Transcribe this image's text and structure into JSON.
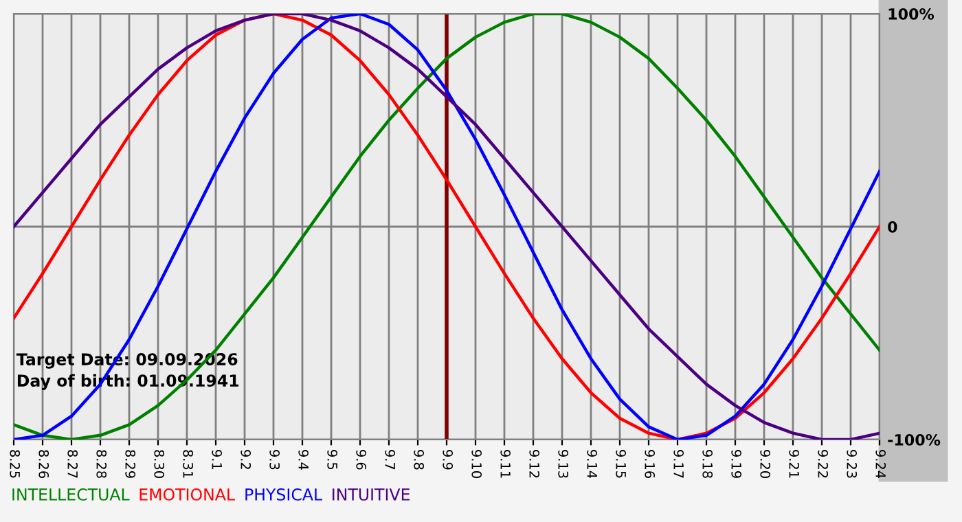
{
  "chart_data": {
    "type": "line",
    "categories": [
      "8.25",
      "8.26",
      "8.27",
      "8.28",
      "8.29",
      "8.30",
      "8.31",
      "9.1",
      "9.2",
      "9.3",
      "9.4",
      "9.5",
      "9.6",
      "9.7",
      "9.8",
      "9.9",
      "9.10",
      "9.11",
      "9.12",
      "9.13",
      "9.14",
      "9.15",
      "9.16",
      "9.17",
      "9.18",
      "9.19",
      "9.20",
      "9.21",
      "9.22",
      "9.23",
      "9.24"
    ],
    "series": [
      {
        "name": "INTELLECTUAL",
        "color": "#008000",
        "values": [
          -93,
          -98,
          -100,
          -98,
          -93,
          -84,
          -72,
          -58,
          -41,
          -24,
          -5,
          14,
          33,
          50,
          65,
          79,
          89,
          96,
          100,
          100,
          96,
          89,
          79,
          65,
          50,
          33,
          14,
          -5,
          -24,
          -41,
          -58
        ]
      },
      {
        "name": "EMOTIONAL",
        "color": "#ff0000",
        "values": [
          -43,
          -22,
          0,
          22,
          43,
          62,
          78,
          90,
          97,
          100,
          97,
          90,
          78,
          62,
          43,
          22,
          0,
          -22,
          -43,
          -62,
          -78,
          -90,
          -97,
          -100,
          -97,
          -90,
          -78,
          -62,
          -43,
          -22,
          0
        ]
      },
      {
        "name": "PHYSICAL",
        "color": "#0000ff",
        "values": [
          -100,
          -98,
          -89,
          -74,
          -53,
          -28,
          -1,
          26,
          51,
          72,
          88,
          98,
          100,
          95,
          83,
          64,
          41,
          15,
          -12,
          -39,
          -62,
          -81,
          -94,
          -100,
          -98,
          -89,
          -74,
          -53,
          -28,
          -1,
          26
        ]
      },
      {
        "name": "INTUITIVE",
        "color": "#4b0082",
        "values": [
          0,
          16,
          32,
          48,
          61,
          74,
          84,
          92,
          97,
          100,
          100,
          97,
          92,
          84,
          74,
          61,
          48,
          32,
          16,
          0,
          -16,
          -32,
          -48,
          -61,
          -74,
          -84,
          -92,
          -97,
          -100,
          -100,
          -97
        ]
      }
    ],
    "ylim": [
      -100,
      100
    ],
    "yticks": [
      {
        "value": 100,
        "label": "100%"
      },
      0,
      {
        "value": -100,
        "label": "-100%"
      }
    ],
    "ref_lines": [
      {
        "axis": "x",
        "value": "9.9",
        "color": "#800000"
      }
    ],
    "annotations": [
      "Target Date: 09.09.2026",
      "Day of birth: 01.09.1941"
    ],
    "grid": true,
    "legend": "bottom",
    "marker": "none",
    "line_style": "solid"
  }
}
